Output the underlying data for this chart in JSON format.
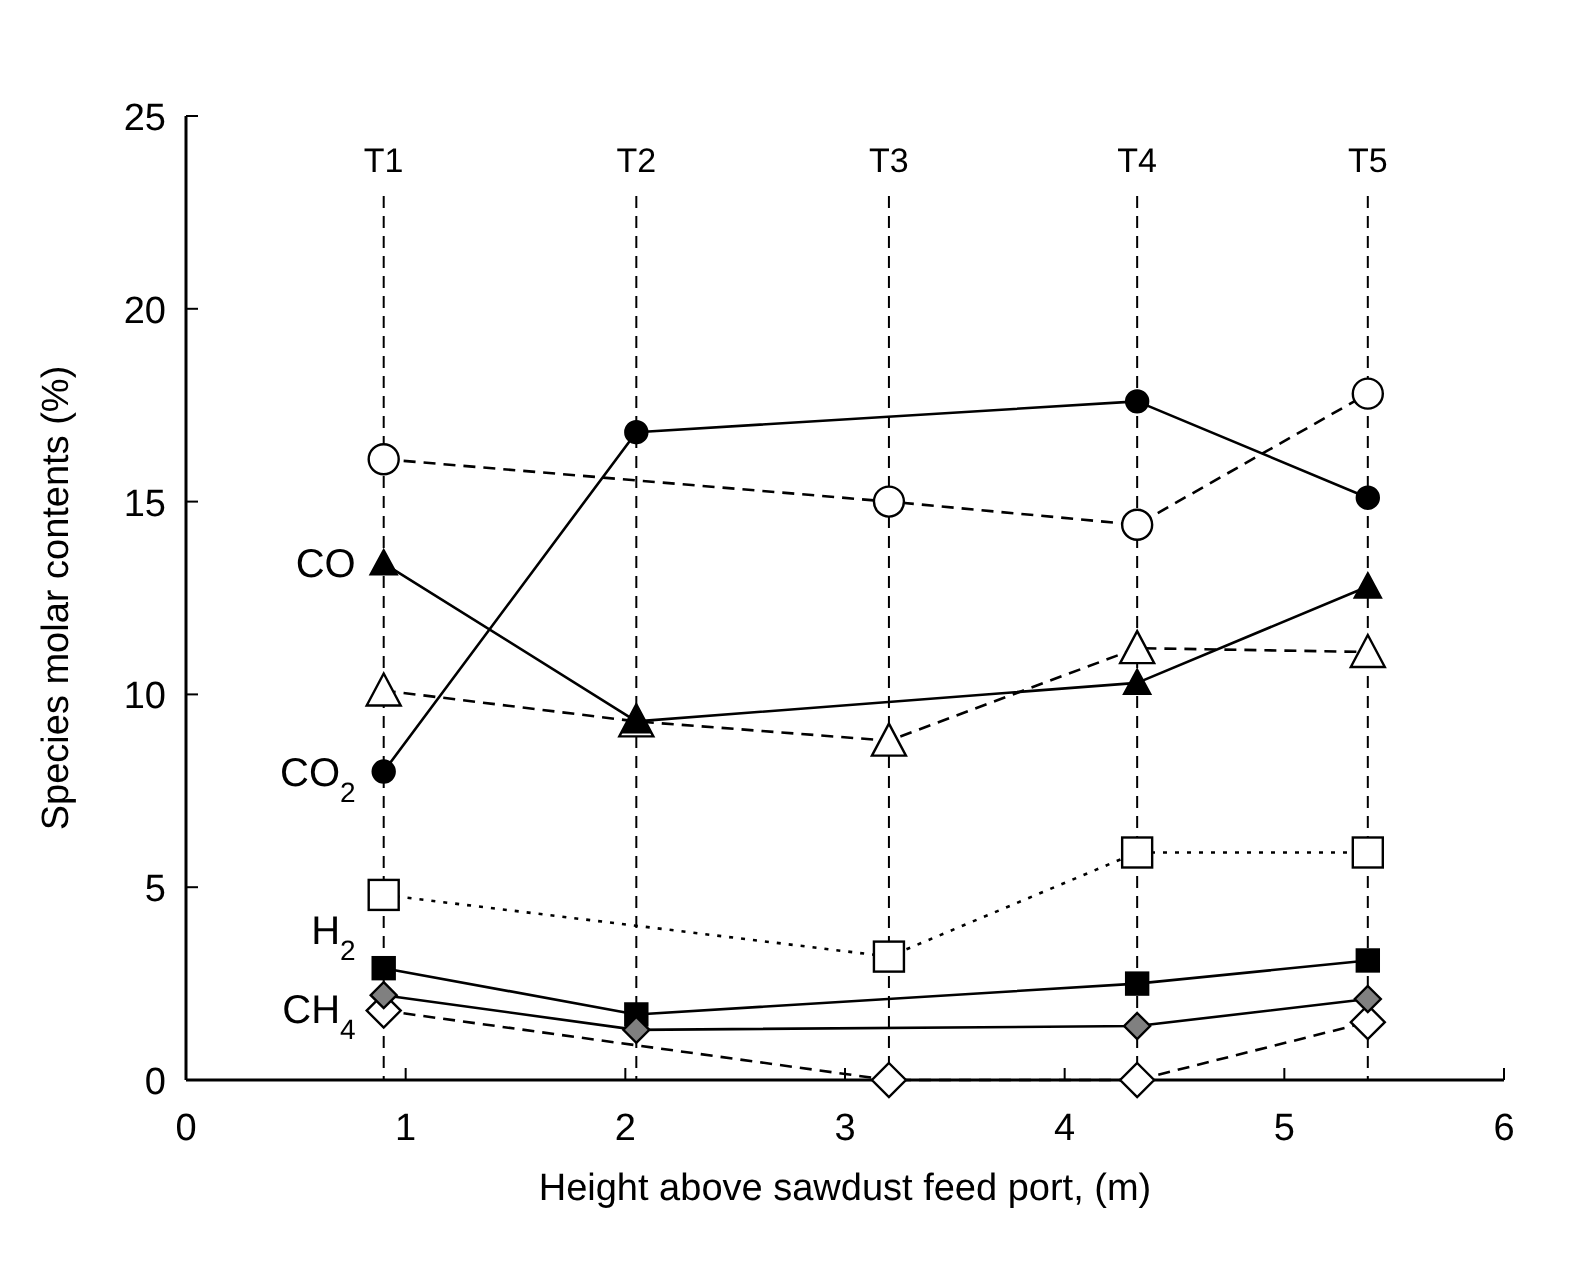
{
  "chart_data": {
    "type": "line",
    "xlabel": "Height above sawdust feed port, (m)",
    "ylabel": "Species molar contents (%)",
    "xlim": [
      0,
      6
    ],
    "xticks": [
      0,
      1,
      2,
      3,
      4,
      5,
      6
    ],
    "ylim": [
      0,
      25
    ],
    "yticks": [
      0,
      5,
      10,
      15,
      20,
      25
    ],
    "grid": false,
    "series": [
      {
        "name": "CO$_{2}$",
        "x": [
          0.9,
          2.05,
          4.33,
          5.38
        ],
        "values": [
          8.0,
          16.8,
          17.6,
          15.1
        ],
        "color": "#000000",
        "marker": "circle",
        "line_style": "solid"
      },
      {
        "x": [
          0.9,
          3.2,
          4.33,
          5.38
        ],
        "values": [
          16.1,
          15.0,
          14.4,
          17.8
        ],
        "color": "#ffffff",
        "marker": "circle",
        "line_style": "dashed"
      },
      {
        "name": "CO",
        "x": [
          0.9,
          2.05,
          4.33,
          5.38
        ],
        "values": [
          13.4,
          9.3,
          10.3,
          12.8
        ],
        "color": "#000000",
        "marker": "triangle",
        "line_style": "solid"
      },
      {
        "x": [
          0.9,
          2.05,
          3.2,
          4.33,
          5.38
        ],
        "values": [
          10.1,
          9.3,
          8.8,
          11.2,
          11.1
        ],
        "color": "#ffffff",
        "marker": "triangle",
        "line_style": "dashed"
      },
      {
        "x": [
          0.9,
          3.2,
          4.33,
          5.38
        ],
        "values": [
          4.8,
          3.2,
          5.9,
          5.9
        ],
        "color": "#ffffff",
        "marker": "square",
        "line_style": "dotted"
      },
      {
        "name": "H$_{2}$",
        "x": [
          0.9,
          2.05,
          4.33,
          5.38
        ],
        "values": [
          2.9,
          1.7,
          2.5,
          3.1
        ],
        "color": "#000000",
        "marker": "square",
        "line_style": "solid"
      },
      {
        "name": "CH$_{4}$",
        "x": [
          0.9,
          2.05,
          4.33,
          5.38
        ],
        "values": [
          2.2,
          1.3,
          1.4,
          2.1
        ],
        "color": "#808080",
        "marker": "diamond",
        "line_style": "solid"
      },
      {
        "x": [
          0.9,
          3.2,
          4.33,
          5.38
        ],
        "values": [
          1.8,
          0,
          0,
          1.5
        ],
        "color": "#ffffff",
        "marker": "diamond",
        "line_style": "dashed"
      }
    ],
    "ref_lines": [
      {
        "axis": "x",
        "value": 0.9,
        "label": "T1",
        "line_style": "dashed"
      },
      {
        "axis": "x",
        "value": 2.05,
        "label": "T2",
        "line_style": "dashed"
      },
      {
        "axis": "x",
        "value": 3.2,
        "label": "T3",
        "line_style": "dashed"
      },
      {
        "axis": "x",
        "value": 4.33,
        "label": "T4",
        "line_style": "dashed"
      },
      {
        "axis": "x",
        "value": 5.38,
        "label": "T5",
        "line_style": "dashed"
      }
    ]
  }
}
